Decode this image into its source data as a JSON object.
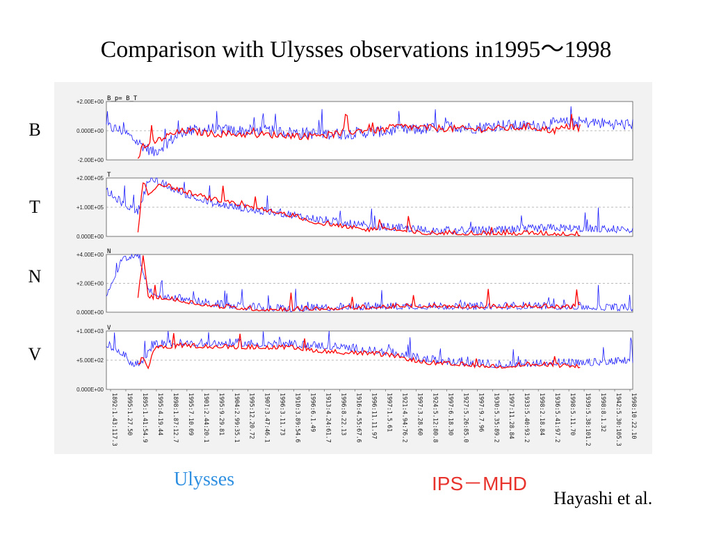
{
  "slide": {
    "title": "Comparison with Ulysses observations in1995～1998",
    "legend_ulysses": "Ulysses",
    "legend_model": "IPS－MHD",
    "credit": "Hayashi et al."
  },
  "colors": {
    "ulysses": "#1a1aff",
    "model": "#ff0000",
    "legend_ulysses": "#2f8fe0",
    "legend_model": "#e8332d"
  },
  "chart_data": [
    {
      "type": "line",
      "label": "B",
      "panel_tag": "B_p= B_T",
      "yticks": [
        "+2.00E+00",
        "0.000E+00",
        "-2.00E+00"
      ],
      "ylim": [
        -2.0,
        2.0
      ],
      "series": [
        {
          "name": "Ulysses",
          "x": [
            0,
            0.03,
            0.06,
            0.09,
            0.12,
            0.15,
            0.2,
            0.25,
            0.3,
            0.35,
            0.4,
            0.45,
            0.5,
            0.55,
            0.6,
            0.65,
            0.7,
            0.75,
            0.8,
            0.85,
            0.9,
            0.95,
            1.0
          ],
          "y": [
            0.3,
            0.0,
            -0.8,
            -1.5,
            -0.7,
            0.0,
            0.1,
            0.0,
            0.0,
            -0.1,
            -0.2,
            -0.2,
            -0.1,
            0.0,
            0.1,
            0.3,
            0.2,
            0.4,
            0.3,
            0.5,
            0.6,
            0.5,
            0.4
          ]
        },
        {
          "name": "IPS-MHD",
          "x": [
            0.06,
            0.07,
            0.09,
            0.12,
            0.15,
            0.2,
            0.35,
            0.38,
            0.4,
            0.42,
            0.5,
            0.52,
            0.55,
            0.6,
            0.7,
            0.78,
            0.8,
            0.85,
            0.88,
            0.9
          ],
          "y": [
            -1.8,
            -1.0,
            -0.8,
            -0.3,
            0.0,
            -0.2,
            -0.3,
            -0.4,
            -0.2,
            -0.3,
            0.1,
            0.0,
            0.3,
            0.2,
            0.1,
            0.2,
            0.3,
            0.0,
            0.3,
            0.2
          ]
        }
      ]
    },
    {
      "type": "line",
      "label": "T",
      "panel_tag": "T",
      "yticks": [
        "+2.00E+05",
        "+1.00E+05",
        "0.000E+00"
      ],
      "ylim": [
        0,
        200000
      ],
      "series": [
        {
          "name": "Ulysses",
          "x": [
            0,
            0.03,
            0.06,
            0.08,
            0.1,
            0.15,
            0.2,
            0.25,
            0.3,
            0.35,
            0.4,
            0.45,
            0.5,
            0.55,
            0.6,
            0.65,
            0.7,
            0.75,
            0.8,
            0.85,
            0.9,
            0.95,
            1.0
          ],
          "y": [
            150000,
            110000,
            80000,
            190000,
            180000,
            140000,
            110000,
            95000,
            80000,
            70000,
            55000,
            40000,
            30000,
            25000,
            18000,
            15000,
            15000,
            16000,
            20000,
            25000,
            22000,
            20000,
            18000
          ]
        },
        {
          "name": "IPS-MHD",
          "x": [
            0.06,
            0.07,
            0.08,
            0.1,
            0.15,
            0.2,
            0.25,
            0.35,
            0.4,
            0.45,
            0.5,
            0.52,
            0.6,
            0.65,
            0.7,
            0.78,
            0.8,
            0.85,
            0.9
          ],
          "y": [
            15000,
            190000,
            140000,
            180000,
            150000,
            125000,
            105000,
            70000,
            45000,
            30000,
            20000,
            30000,
            8000,
            10000,
            9000,
            8000,
            10000,
            7000,
            6000
          ]
        }
      ]
    },
    {
      "type": "line",
      "label": "N",
      "panel_tag": "N",
      "yticks": [
        "+4.00E+00",
        "+2.00E+00",
        "0.000E+00"
      ],
      "ylim": [
        0,
        4.0
      ],
      "series": [
        {
          "name": "Ulysses",
          "x": [
            0,
            0.03,
            0.06,
            0.08,
            0.1,
            0.15,
            0.2,
            0.25,
            0.3,
            0.35,
            0.4,
            0.5,
            0.6,
            0.7,
            0.8,
            0.9,
            1.0
          ],
          "y": [
            1.2,
            3.5,
            4.0,
            1.5,
            1.1,
            0.8,
            0.5,
            0.3,
            0.2,
            0.15,
            0.2,
            0.3,
            0.35,
            0.3,
            0.35,
            0.3,
            0.2
          ]
        },
        {
          "name": "IPS-MHD",
          "x": [
            0.06,
            0.07,
            0.08,
            0.1,
            0.15,
            0.2,
            0.25,
            0.3,
            0.4,
            0.5,
            0.6,
            0.7,
            0.8,
            0.85,
            0.9
          ],
          "y": [
            0.8,
            4.0,
            1.0,
            1.0,
            0.7,
            0.4,
            0.25,
            0.15,
            0.2,
            0.3,
            0.4,
            0.35,
            0.4,
            0.3,
            0.35
          ]
        }
      ]
    },
    {
      "type": "line",
      "label": "V",
      "panel_tag": "V",
      "yticks": [
        "+1.00E+03",
        "+5.00E+02",
        "0.000E+00"
      ],
      "ylim": [
        0,
        1000
      ],
      "series": [
        {
          "name": "Ulysses",
          "x": [
            0,
            0.03,
            0.05,
            0.07,
            0.09,
            0.12,
            0.15,
            0.2,
            0.25,
            0.3,
            0.35,
            0.4,
            0.45,
            0.5,
            0.55,
            0.6,
            0.65,
            0.7,
            0.75,
            0.8,
            0.85,
            0.9,
            0.95,
            1.0
          ],
          "y": [
            750,
            600,
            400,
            450,
            750,
            770,
            760,
            770,
            770,
            760,
            750,
            730,
            700,
            650,
            600,
            500,
            450,
            420,
            400,
            420,
            450,
            420,
            450,
            470
          ]
        },
        {
          "name": "IPS-MHD",
          "x": [
            0.06,
            0.07,
            0.08,
            0.09,
            0.12,
            0.15,
            0.2,
            0.35,
            0.4,
            0.45,
            0.5,
            0.55,
            0.6,
            0.65,
            0.7,
            0.75,
            0.8,
            0.85,
            0.9
          ],
          "y": [
            400,
            550,
            350,
            700,
            720,
            740,
            720,
            700,
            650,
            620,
            600,
            560,
            450,
            420,
            400,
            380,
            420,
            400,
            380
          ]
        }
      ]
    }
  ],
  "x_axis": {
    "tick_labels": [
      "1892:1.43:117.3",
      "1995:1.27.50",
      "1895:1.41:54.9",
      "1995:4.19.44",
      "1898:1.87:12.7",
      "1995:7.10.09",
      "1901:2.44:20.1",
      "1995:9.29.81",
      "1904:2.99:35.1",
      "1995:12.20.72",
      "1907:3.47:46.1",
      "1996:3.11.73",
      "1910:3.89:54.6",
      "1996:6.1.49",
      "1913:4.24:61.7",
      "1996:8.22.13",
      "1916:4.55:67.6",
      "1996:11.11.97",
      "1997:1.5.61",
      "1921:4.94:76.2",
      "1997:3.28.60",
      "1924:5.12:80.8",
      "1997:6.18.30",
      "1927:5.26:85.0",
      "1997:9.7.96",
      "1930:5.35:89.2",
      "1997:11.28.84",
      "1933:5.40:93.2",
      "1998:2.18.84",
      "1936:5.41:97.2",
      "1998:5.11.70",
      "1939:5.38:101.2",
      "1998:8.1.32",
      "1942:5.30:105.3",
      "1998:10.22.10"
    ]
  }
}
